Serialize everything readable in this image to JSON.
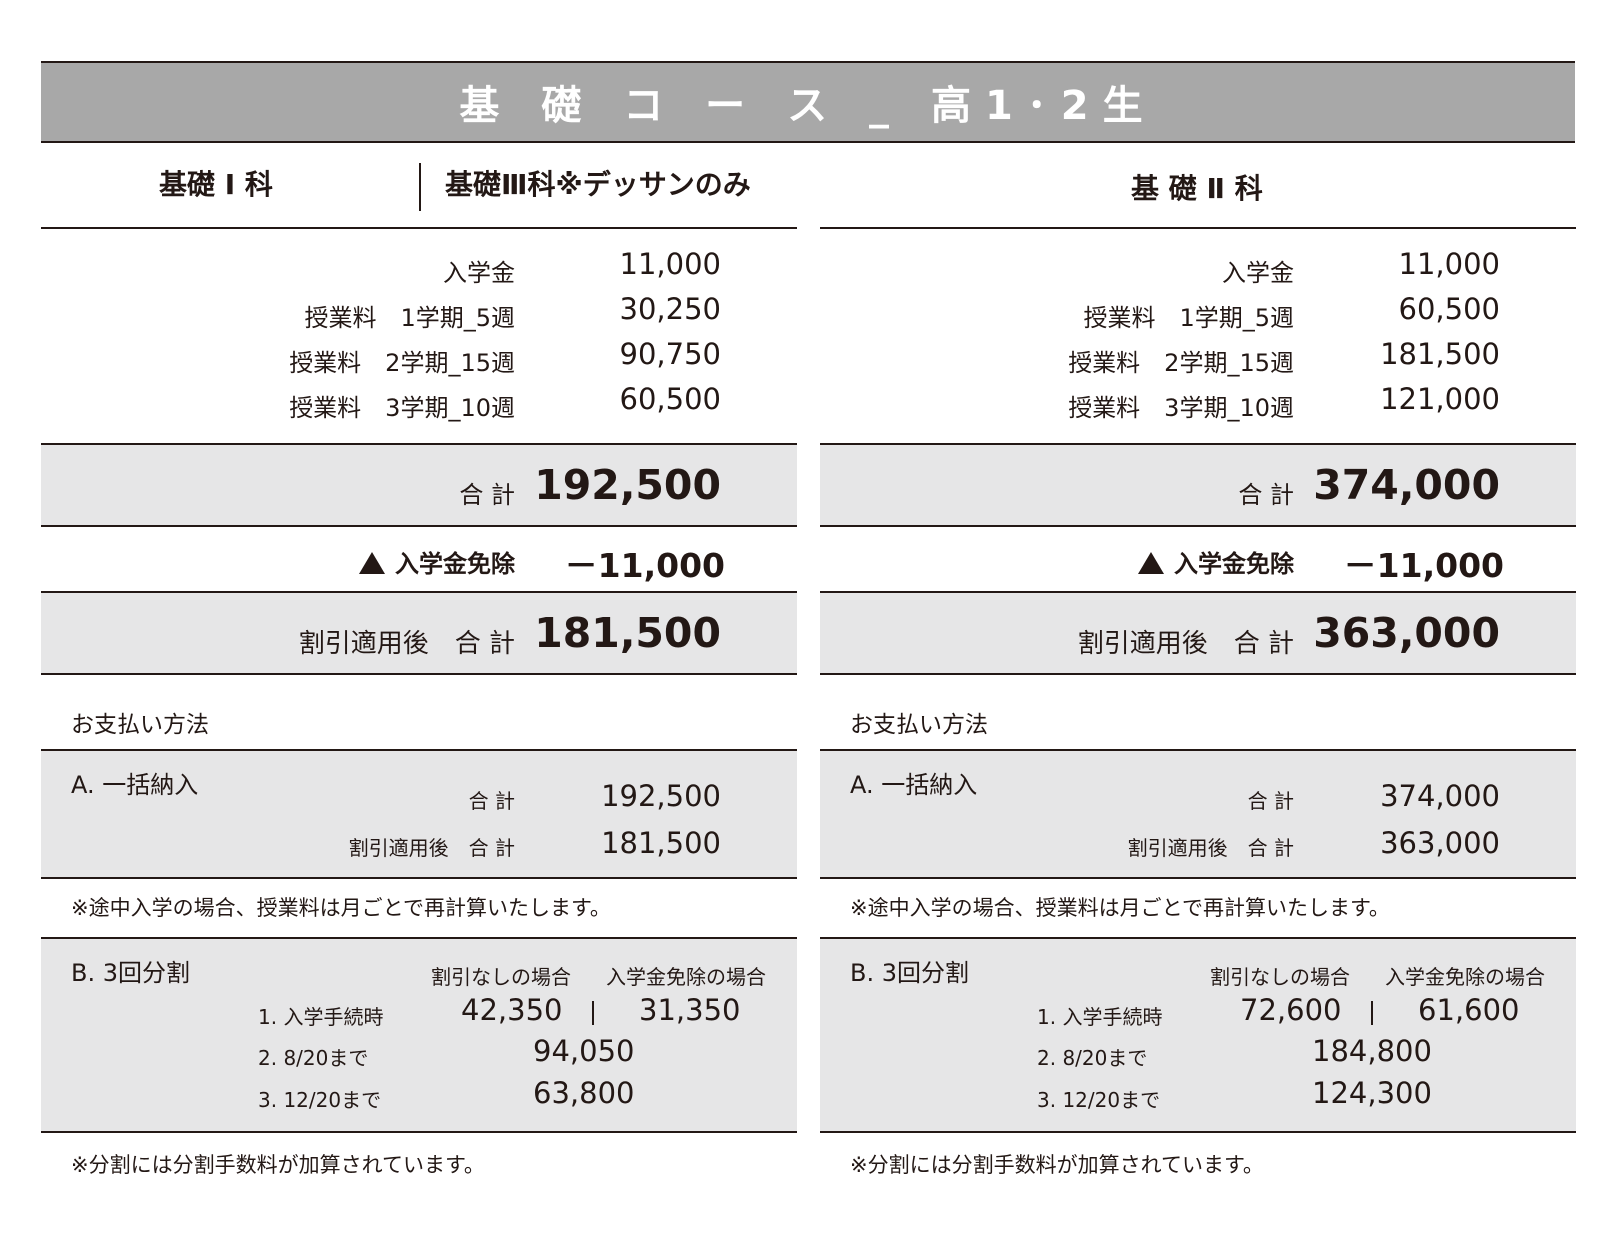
{
  "title": "基 礎 コ ー ス _ 高1･2生",
  "columns": [
    {
      "headers": [
        "基礎 Ⅰ 科",
        "基礎Ⅲ科※デッサンのみ"
      ],
      "lines": [
        {
          "label": "入学金",
          "value": "11,000"
        },
        {
          "label": "授業料　1学期_5週",
          "value": "30,250"
        },
        {
          "label": "授業料　2学期_15週",
          "value": "90,750"
        },
        {
          "label": "授業料　3学期_10週",
          "value": "60,500"
        }
      ],
      "total_label": "合 計",
      "total_value": "192,500",
      "exempt_label": "入学金免除",
      "exempt_value": "－11,000",
      "after_label": "割引適用後　合 計",
      "after_value": "181,500",
      "payment_title": "お支払い方法",
      "a_title": "A. 一括納入",
      "a_total_label": "合 計",
      "a_total_value": "192,500",
      "a_after_label": "割引適用後　合 計",
      "a_after_value": "181,500",
      "note1": "※途中入学の場合、授業料は月ごとで再計算いたします。",
      "b_title": "B. 3回分割",
      "b_col1": "割引なしの場合",
      "b_col2": "入学金免除の場合",
      "b_rows": [
        {
          "label": "1. 入学手続時",
          "v1": "42,350",
          "v2": "31,350"
        },
        {
          "label": "2. 8/20まで",
          "v1": "94,050"
        },
        {
          "label": "3. 12/20まで",
          "v1": "63,800"
        }
      ],
      "note2": "※分割には分割手数料が加算されています。"
    },
    {
      "headers": [
        "基 礎 Ⅱ 科"
      ],
      "lines": [
        {
          "label": "入学金",
          "value": "11,000"
        },
        {
          "label": "授業料　1学期_5週",
          "value": "60,500"
        },
        {
          "label": "授業料　2学期_15週",
          "value": "181,500"
        },
        {
          "label": "授業料　3学期_10週",
          "value": "121,000"
        }
      ],
      "total_label": "合 計",
      "total_value": "374,000",
      "exempt_label": "入学金免除",
      "exempt_value": "－11,000",
      "after_label": "割引適用後　合 計",
      "after_value": "363,000",
      "payment_title": "お支払い方法",
      "a_title": "A. 一括納入",
      "a_total_label": "合 計",
      "a_total_value": "374,000",
      "a_after_label": "割引適用後　合 計",
      "a_after_value": "363,000",
      "note1": "※途中入学の場合、授業料は月ごとで再計算いたします。",
      "b_title": "B. 3回分割",
      "b_col1": "割引なしの場合",
      "b_col2": "入学金免除の場合",
      "b_rows": [
        {
          "label": "1. 入学手続時",
          "v1": "72,600",
          "v2": "61,600"
        },
        {
          "label": "2. 8/20まで",
          "v1": "184,800"
        },
        {
          "label": "3. 12/20まで",
          "v1": "124,300"
        }
      ],
      "note2": "※分割には分割手数料が加算されています。"
    }
  ]
}
